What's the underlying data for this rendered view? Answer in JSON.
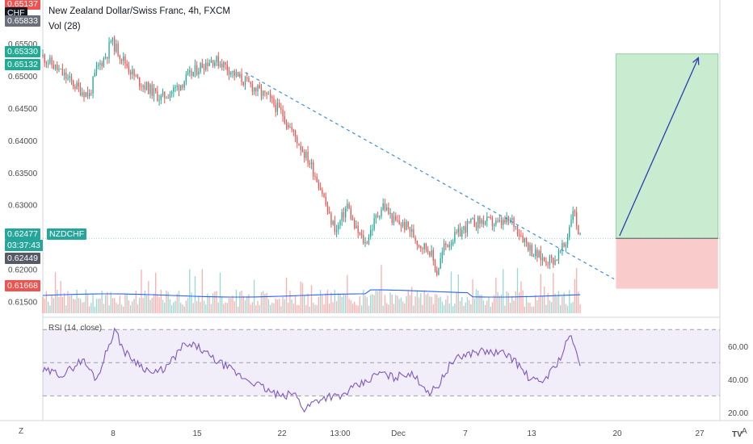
{
  "header": {
    "title": "New Zealand Dollar/Swiss Franc, 4h, FXCM",
    "volume_indicator": "Vol (28)",
    "rsi_indicator": "RSI (14, close)"
  },
  "price_tags": [
    {
      "label": "0.65137",
      "color": "#ef5350"
    },
    {
      "label": "CHF",
      "color": "#131722"
    },
    {
      "label": "0.65833",
      "color": "#6b6f7a"
    },
    {
      "label": "0.65330",
      "color": "#22ab94"
    },
    {
      "label": "0.65132",
      "color": "#22ab94"
    },
    {
      "label": "0.62477",
      "color": "#26a69a"
    },
    {
      "label": "NZDCHF",
      "color": "#26a69a"
    },
    {
      "label": "03:37:43",
      "color": "#26a69a"
    },
    {
      "label": "0.62449",
      "color": "#555a66"
    },
    {
      "label": "0.61668",
      "color": "#ef5350"
    }
  ],
  "corner": {
    "left": "Z",
    "right": "A",
    "logo": "TV"
  },
  "colors": {
    "up": "#26a69a",
    "down": "#ef5350",
    "trendline": "#3e8fd8",
    "rsi": "#7e57c2",
    "profit_zone": "#b7e4bf",
    "loss_zone": "#f8b9b9",
    "arrow": "#2a3eb1"
  },
  "chart_data": {
    "type": "candlestick",
    "symbol": "NZDCHF",
    "price_axis": {
      "ticks": [
        "0.65500",
        "0.65000",
        "0.64500",
        "0.64000",
        "0.63500",
        "0.63000",
        "0.62500",
        "0.62000",
        "0.61500"
      ],
      "ylim": [
        0.6142,
        0.6605
      ]
    },
    "time_axis": {
      "ticks": [
        "8",
        "15",
        "22",
        "13:00",
        "Dec",
        "7",
        "13",
        "20",
        "27"
      ]
    },
    "rsi_axis": {
      "ticks": [
        "60.00",
        "40.00",
        "20.00"
      ],
      "ylim": [
        17,
        75
      ],
      "bands": [
        30,
        70
      ]
    },
    "price_path": [
      [
        0,
        0.653
      ],
      [
        10,
        0.6505
      ],
      [
        20,
        0.648
      ],
      [
        26,
        0.647
      ],
      [
        30,
        0.651
      ],
      [
        36,
        0.6535
      ],
      [
        38,
        0.6555
      ],
      [
        45,
        0.6525
      ],
      [
        52,
        0.6495
      ],
      [
        60,
        0.6478
      ],
      [
        66,
        0.6465
      ],
      [
        74,
        0.648
      ],
      [
        82,
        0.65
      ],
      [
        88,
        0.6515
      ],
      [
        94,
        0.6525
      ],
      [
        100,
        0.652
      ],
      [
        108,
        0.65
      ],
      [
        116,
        0.6485
      ],
      [
        126,
        0.6465
      ],
      [
        134,
        0.644
      ],
      [
        142,
        0.64
      ],
      [
        150,
        0.636
      ],
      [
        156,
        0.632
      ],
      [
        160,
        0.628
      ],
      [
        164,
        0.626
      ],
      [
        170,
        0.63
      ],
      [
        174,
        0.6265
      ],
      [
        180,
        0.624
      ],
      [
        186,
        0.628
      ],
      [
        190,
        0.63
      ],
      [
        196,
        0.6275
      ],
      [
        204,
        0.6265
      ],
      [
        210,
        0.624
      ],
      [
        216,
        0.623
      ],
      [
        220,
        0.6195
      ],
      [
        224,
        0.6235
      ],
      [
        230,
        0.625
      ],
      [
        238,
        0.627
      ],
      [
        246,
        0.6275
      ],
      [
        254,
        0.627
      ],
      [
        262,
        0.6275
      ],
      [
        268,
        0.625
      ],
      [
        274,
        0.6225
      ],
      [
        280,
        0.6215
      ],
      [
        286,
        0.6215
      ],
      [
        292,
        0.624
      ],
      [
        296,
        0.6295
      ],
      [
        300,
        0.6248
      ]
    ],
    "last_candle_index": 300,
    "rsi_path": [
      [
        0,
        45
      ],
      [
        12,
        43
      ],
      [
        22,
        52
      ],
      [
        30,
        40
      ],
      [
        36,
        58
      ],
      [
        40,
        70
      ],
      [
        46,
        56
      ],
      [
        54,
        49
      ],
      [
        62,
        43
      ],
      [
        70,
        48
      ],
      [
        78,
        60
      ],
      [
        86,
        60
      ],
      [
        94,
        53
      ],
      [
        102,
        48
      ],
      [
        110,
        42
      ],
      [
        118,
        38
      ],
      [
        126,
        33
      ],
      [
        134,
        29
      ],
      [
        140,
        32
      ],
      [
        146,
        22
      ],
      [
        152,
        27
      ],
      [
        160,
        30
      ],
      [
        166,
        29
      ],
      [
        172,
        34
      ],
      [
        180,
        38
      ],
      [
        188,
        44
      ],
      [
        196,
        41
      ],
      [
        204,
        44
      ],
      [
        210,
        39
      ],
      [
        216,
        32
      ],
      [
        220,
        35
      ],
      [
        228,
        50
      ],
      [
        236,
        55
      ],
      [
        244,
        57
      ],
      [
        252,
        56
      ],
      [
        260,
        55
      ],
      [
        266,
        48
      ],
      [
        272,
        40
      ],
      [
        278,
        38
      ],
      [
        284,
        45
      ],
      [
        290,
        55
      ],
      [
        294,
        67
      ],
      [
        300,
        50
      ]
    ],
    "trendline": {
      "from": [
        113,
        0.6505
      ],
      "to": [
        319,
        0.6185
      ]
    },
    "position": {
      "entry": 0.6248,
      "target": 0.6534,
      "stop": 0.617,
      "x_start": 320,
      "x_end": 377
    },
    "arrow": {
      "from": [
        322,
        0.6252
      ],
      "to": [
        366,
        0.6528
      ]
    },
    "x_range": [
      0,
      378
    ]
  }
}
